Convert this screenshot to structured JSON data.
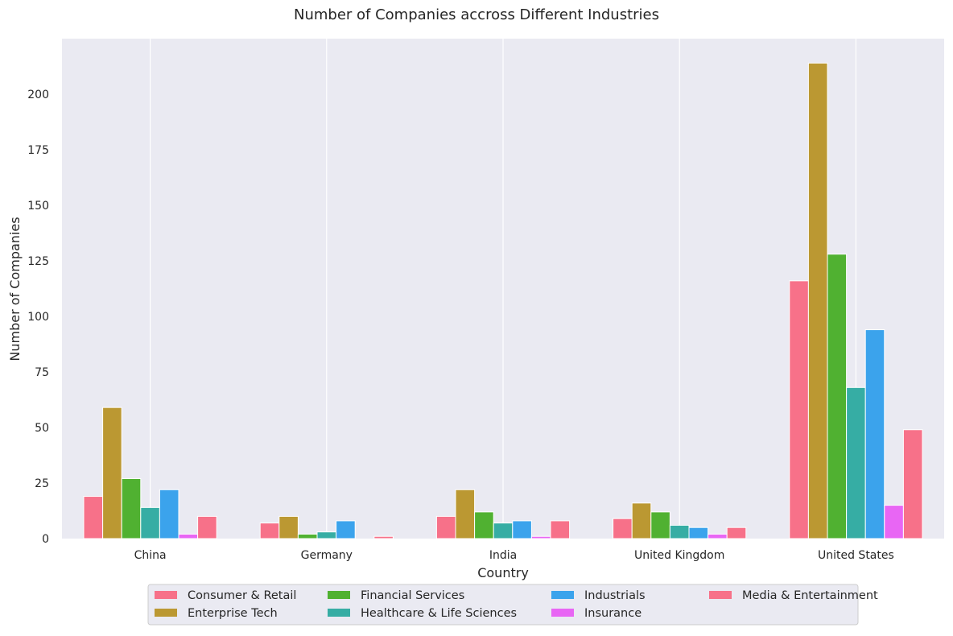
{
  "chart_data": {
    "type": "bar",
    "title": "Number of Companies accross Different Industries",
    "xlabel": "Country",
    "ylabel": "Number of Companies",
    "categories": [
      "China",
      "Germany",
      "India",
      "United Kingdom",
      "United States"
    ],
    "ylim": [
      0,
      225
    ],
    "yticks": [
      0,
      25,
      50,
      75,
      100,
      125,
      150,
      175,
      200
    ],
    "grid": "vertical lines at category ticks",
    "legend_placement": "bottom-center",
    "background": "#eaeaf2",
    "series": [
      {
        "name": "Consumer & Retail",
        "color": "#f77189",
        "values": [
          19,
          7,
          10,
          9,
          116
        ]
      },
      {
        "name": "Enterprise Tech",
        "color": "#bb9832",
        "values": [
          59,
          10,
          22,
          16,
          214
        ]
      },
      {
        "name": "Financial Services",
        "color": "#50b131",
        "values": [
          27,
          2,
          12,
          12,
          128
        ]
      },
      {
        "name": "Healthcare & Life Sciences",
        "color": "#36ada4",
        "values": [
          14,
          3,
          7,
          6,
          68
        ]
      },
      {
        "name": "Industrials",
        "color": "#3ba3ec",
        "values": [
          22,
          8,
          8,
          5,
          94
        ]
      },
      {
        "name": "Insurance",
        "color": "#e866f4",
        "values": [
          2,
          0,
          1,
          2,
          15
        ]
      },
      {
        "name": "Media & Entertainment",
        "color": "#f77189",
        "values": [
          10,
          1,
          8,
          5,
          49
        ]
      }
    ]
  }
}
